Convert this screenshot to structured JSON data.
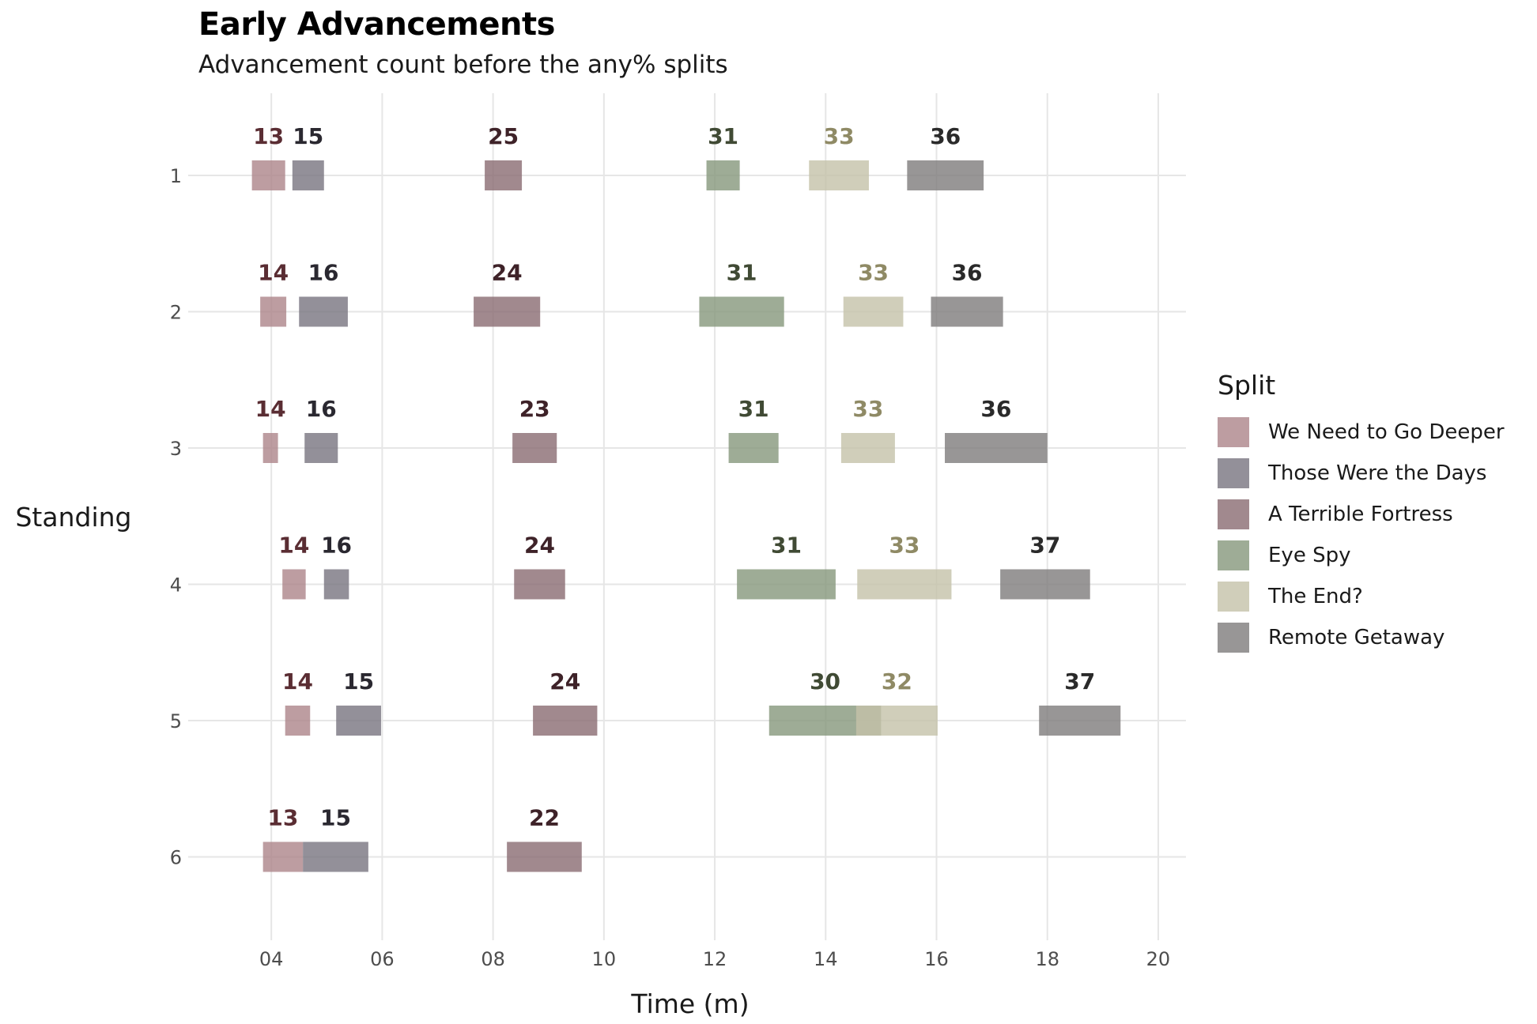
{
  "chart_data": {
    "type": "bar",
    "title": "Early Advancements",
    "subtitle": "Advancement count before the any% splits",
    "xlabel": "Time (m)",
    "ylabel": "Standing",
    "xlim": [
      2.5,
      20.5
    ],
    "xticks": [
      "04",
      "06",
      "08",
      "10",
      "12",
      "14",
      "16",
      "18",
      "20"
    ],
    "categories": [
      "1",
      "2",
      "3",
      "4",
      "5",
      "6"
    ],
    "legend_title": "Split",
    "legend_position": "right",
    "grid": true,
    "series": [
      {
        "name": "We Need to Go Deeper",
        "color": "#ad8589",
        "label_color": "#5a2d33",
        "values": [
          {
            "standing": "1",
            "start": 3.65,
            "end": 4.25,
            "count": "13"
          },
          {
            "standing": "2",
            "start": 3.8,
            "end": 4.27,
            "count": "14"
          },
          {
            "standing": "3",
            "start": 3.85,
            "end": 4.12,
            "count": "14"
          },
          {
            "standing": "4",
            "start": 4.2,
            "end": 4.62,
            "count": "14"
          },
          {
            "standing": "5",
            "start": 4.25,
            "end": 4.7,
            "count": "14"
          },
          {
            "standing": "6",
            "start": 3.85,
            "end": 4.57,
            "count": "13"
          }
        ]
      },
      {
        "name": "Those Were the Days",
        "color": "#787480",
        "label_color": "#2a2830",
        "values": [
          {
            "standing": "1",
            "start": 4.38,
            "end": 4.95,
            "count": "15"
          },
          {
            "standing": "2",
            "start": 4.5,
            "end": 5.38,
            "count": "16"
          },
          {
            "standing": "3",
            "start": 4.6,
            "end": 5.2,
            "count": "16"
          },
          {
            "standing": "4",
            "start": 4.95,
            "end": 5.4,
            "count": "16"
          },
          {
            "standing": "5",
            "start": 5.17,
            "end": 5.98,
            "count": "15"
          },
          {
            "standing": "6",
            "start": 4.57,
            "end": 5.75,
            "count": "15"
          }
        ]
      },
      {
        "name": "A Terrible Fortress",
        "color": "#8a6c72",
        "label_color": "#3e2228",
        "values": [
          {
            "standing": "1",
            "start": 7.85,
            "end": 8.52,
            "count": "25"
          },
          {
            "standing": "2",
            "start": 7.65,
            "end": 8.85,
            "count": "24"
          },
          {
            "standing": "3",
            "start": 8.35,
            "end": 9.15,
            "count": "23"
          },
          {
            "standing": "4",
            "start": 8.38,
            "end": 9.3,
            "count": "24"
          },
          {
            "standing": "5",
            "start": 8.72,
            "end": 9.88,
            "count": "24"
          },
          {
            "standing": "6",
            "start": 8.25,
            "end": 9.6,
            "count": "22"
          }
        ]
      },
      {
        "name": "Eye Spy",
        "color": "#86977c",
        "label_color": "#404a34",
        "values": [
          {
            "standing": "1",
            "start": 11.85,
            "end": 12.45,
            "count": "31"
          },
          {
            "standing": "2",
            "start": 11.72,
            "end": 13.25,
            "count": "31"
          },
          {
            "standing": "3",
            "start": 12.25,
            "end": 13.15,
            "count": "31"
          },
          {
            "standing": "4",
            "start": 12.4,
            "end": 14.18,
            "count": "31"
          },
          {
            "standing": "5",
            "start": 12.98,
            "end": 15.0,
            "count": "30"
          }
        ]
      },
      {
        "name": "The End?",
        "color": "#c4c2a9",
        "label_color": "#8f8a65",
        "values": [
          {
            "standing": "1",
            "start": 13.7,
            "end": 14.78,
            "count": "33"
          },
          {
            "standing": "2",
            "start": 14.32,
            "end": 15.4,
            "count": "33"
          },
          {
            "standing": "3",
            "start": 14.28,
            "end": 15.25,
            "count": "33"
          },
          {
            "standing": "4",
            "start": 14.57,
            "end": 16.27,
            "count": "33"
          },
          {
            "standing": "5",
            "start": 14.55,
            "end": 16.02,
            "count": "32"
          }
        ]
      },
      {
        "name": "Remote Getaway",
        "color": "#7e7c7c",
        "label_color": "#2a2a2a",
        "values": [
          {
            "standing": "1",
            "start": 15.47,
            "end": 16.85,
            "count": "36"
          },
          {
            "standing": "2",
            "start": 15.9,
            "end": 17.2,
            "count": "36"
          },
          {
            "standing": "3",
            "start": 16.15,
            "end": 18.0,
            "count": "36"
          },
          {
            "standing": "4",
            "start": 17.15,
            "end": 18.77,
            "count": "37"
          },
          {
            "standing": "5",
            "start": 17.85,
            "end": 19.32,
            "count": "37"
          }
        ]
      }
    ]
  }
}
